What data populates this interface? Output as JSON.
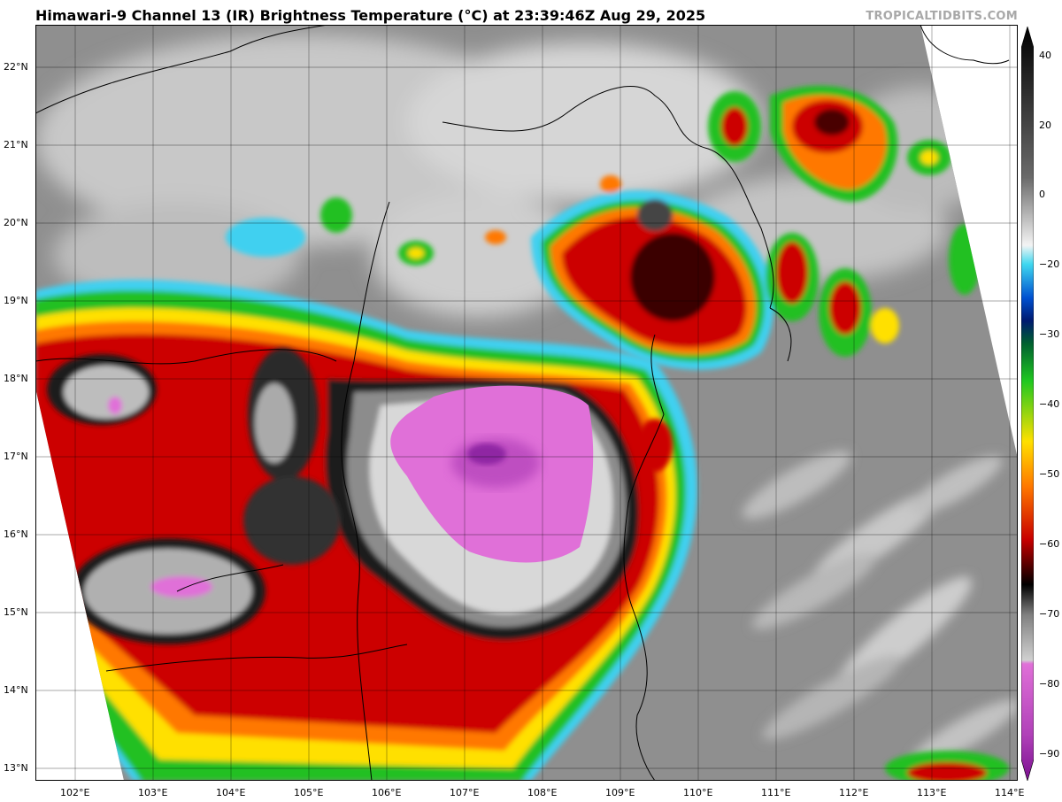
{
  "title": "Himawari-9 Channel 13 (IR) Brightness Temperature (°C) at 23:39:46Z Aug 29, 2025",
  "credit": "TROPICALTIDBITS.COM",
  "longitude_labels": [
    "102°E",
    "103°E",
    "104°E",
    "105°E",
    "106°E",
    "107°E",
    "108°E",
    "109°E",
    "110°E",
    "111°E",
    "112°E",
    "113°E",
    "114°E"
  ],
  "latitude_labels": [
    "22°N",
    "21°N",
    "20°N",
    "19°N",
    "18°N",
    "17°N",
    "16°N",
    "15°N",
    "14°N",
    "13°N"
  ],
  "colorbar": {
    "labels": [
      "40",
      "20",
      "0",
      "−20",
      "−30",
      "−40",
      "−50",
      "−60",
      "−70",
      "−80",
      "−90"
    ],
    "min": -95,
    "max": 45
  },
  "colors": {
    "cold_magenta": "#e070d8",
    "deep_purple": "#8a20a0",
    "black": "#000000",
    "red": "#c80000",
    "orange": "#ff7800",
    "yellow": "#ffe000",
    "green": "#20c820",
    "blue": "#0050d0",
    "cyan": "#40d8f0",
    "warm_gray": "#8c8c8c"
  }
}
